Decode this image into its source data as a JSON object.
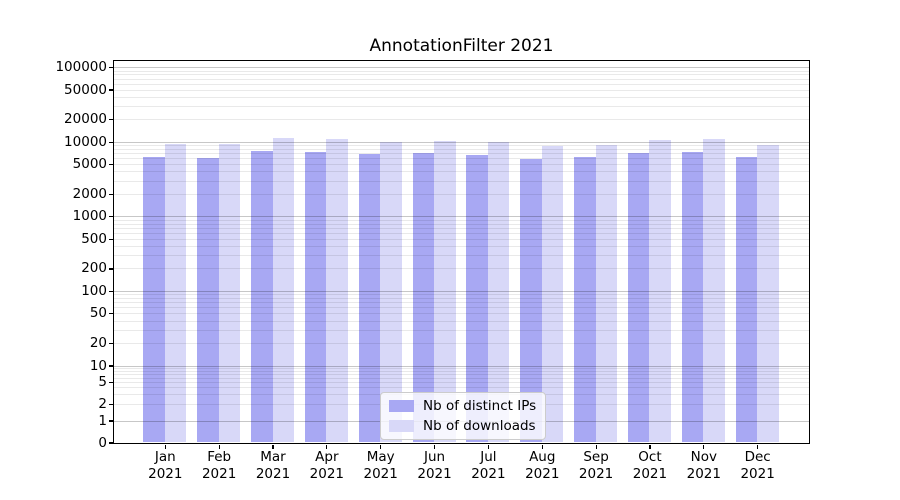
{
  "title": "AnnotationFilter 2021",
  "chart_data": {
    "type": "bar",
    "title": "AnnotationFilter 2021",
    "months": [
      "Jan",
      "Feb",
      "Mar",
      "Apr",
      "May",
      "Jun",
      "Jul",
      "Aug",
      "Sep",
      "Oct",
      "Nov",
      "Dec"
    ],
    "year_label": "2021",
    "categories": [
      "Jan 2021",
      "Feb 2021",
      "Mar 2021",
      "Apr 2021",
      "May 2021",
      "Jun 2021",
      "Jul 2021",
      "Aug 2021",
      "Sep 2021",
      "Oct 2021",
      "Nov 2021",
      "Dec 2021"
    ],
    "series": [
      {
        "name": "Nb of distinct IPs",
        "color": "#a8a8f3",
        "values": [
          6300,
          6100,
          7450,
          7350,
          6900,
          6950,
          6550,
          5900,
          6150,
          6950,
          7250,
          6150
        ]
      },
      {
        "name": "Nb of downloads",
        "color": "#d8d8f8",
        "values": [
          9400,
          9400,
          11300,
          10800,
          10000,
          10150,
          9950,
          8700,
          9050,
          10400,
          10900,
          9150
        ]
      }
    ],
    "yscale": "symlog",
    "yticks": [
      0,
      1,
      2,
      5,
      10,
      20,
      50,
      100,
      200,
      500,
      1000,
      2000,
      5000,
      10000,
      20000,
      50000,
      100000
    ],
    "ylim": [
      0,
      122000
    ],
    "grid": true,
    "legend_position": "lower center",
    "colors": {
      "grid_major": "#c8c8c8",
      "grid_minor": "#e9e9e9",
      "spine": "#000000",
      "background": "#ffffff"
    }
  }
}
